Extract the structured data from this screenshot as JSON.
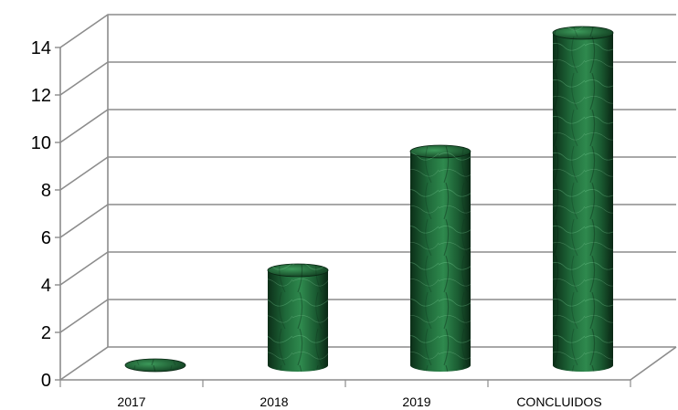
{
  "chart_data": {
    "type": "bar",
    "style": "3d-cylinder",
    "bar_texture": "green-marble",
    "colors": {
      "bar_dark": "#0f3a1e",
      "bar_mid": "#1f6a3a",
      "bar_light": "#4ea86a",
      "grid": "#8c8c8c"
    },
    "categories": [
      "2017",
      "2018",
      "2019",
      "CONCLUIDOS"
    ],
    "values": [
      0,
      4,
      9,
      14
    ],
    "title": "",
    "xlabel": "",
    "ylabel": "",
    "ylim": [
      0,
      14
    ],
    "yticks": [
      "0",
      "2",
      "4",
      "6",
      "8",
      "10",
      "12",
      "14"
    ],
    "grid": true,
    "legend": "none"
  }
}
